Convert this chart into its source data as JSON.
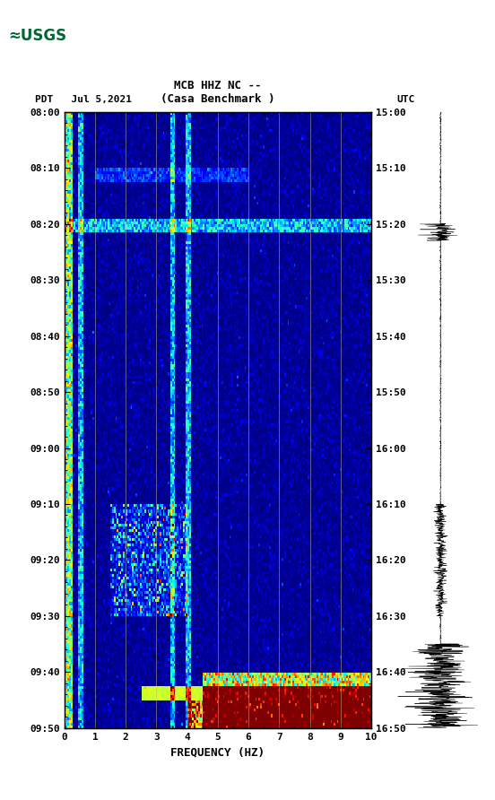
{
  "title_line1": "MCB HHZ NC --",
  "title_line2": "(Casa Benchmark )",
  "date_label": "PDT   Jul 5,2021",
  "utc_label": "UTC",
  "xlabel": "FREQUENCY (HZ)",
  "ytick_pdt": [
    "08:00",
    "08:10",
    "08:20",
    "08:30",
    "08:40",
    "08:50",
    "09:00",
    "09:10",
    "09:20",
    "09:30",
    "09:40",
    "09:50"
  ],
  "ytick_utc": [
    "15:00",
    "15:10",
    "15:20",
    "15:30",
    "15:40",
    "15:50",
    "16:00",
    "16:10",
    "16:20",
    "16:30",
    "16:40",
    "16:50"
  ],
  "xticks": [
    0,
    1,
    2,
    3,
    4,
    5,
    6,
    7,
    8,
    9,
    10
  ],
  "bg_color": "white",
  "spectrogram_colormap": "jet",
  "fig_width": 5.52,
  "fig_height": 8.92
}
